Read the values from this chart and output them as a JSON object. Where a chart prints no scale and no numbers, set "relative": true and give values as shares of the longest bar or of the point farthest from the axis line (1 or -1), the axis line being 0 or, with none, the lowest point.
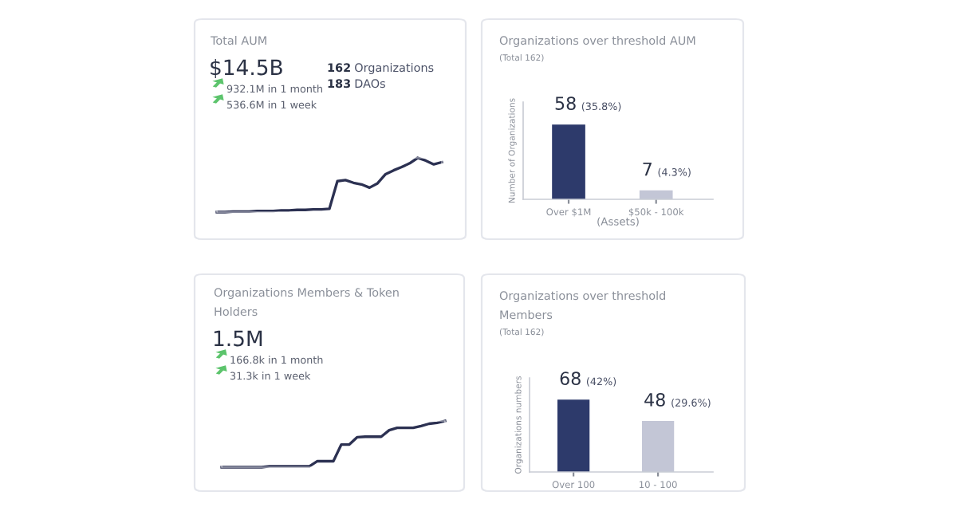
{
  "chart_data": [
    {
      "type": "line",
      "title": "Total AUM",
      "relative": true,
      "tick_labels": false,
      "grid": false,
      "legend": false,
      "annotations": [
        "$14.5B",
        "162 Organizations",
        "183 DAOs",
        "932.1M in 1 month",
        "536.6M in 1 week"
      ],
      "categories": [
        null,
        null,
        null,
        null,
        null,
        null,
        null,
        null,
        null,
        null,
        null,
        null,
        null,
        null,
        null,
        null,
        null,
        null,
        null,
        null,
        null,
        null,
        null,
        null,
        null,
        null,
        null,
        null,
        null
      ],
      "series": [
        {
          "color": "#2c3152",
          "values": [
            0,
            0,
            0.01,
            0.01,
            0.01,
            0.02,
            0.02,
            0.02,
            0.03,
            0.03,
            0.04,
            0.04,
            0.05,
            0.05,
            0.06,
            0.57,
            0.59,
            0.54,
            0.51,
            0.45,
            0.53,
            0.7,
            0.77,
            0.83,
            0.9,
            1,
            0.95,
            0.88,
            0.92
          ]
        }
      ]
    },
    {
      "type": "bar",
      "title": "Organizations over threshold AUM",
      "subtitle": "(Total 162)",
      "ylabel": "Number of Organizations",
      "xlabel": "(Assets)",
      "tick_labels": "x",
      "grid": false,
      "legend": false,
      "categories": [
        "Over $1M",
        "$50k - 100k"
      ],
      "values": [
        58,
        7
      ],
      "colors": [
        "#2d3a6b",
        "#c3c6d6"
      ],
      "value_labels": [
        "58 (35.8%)",
        "7 (4.3%)"
      ]
    },
    {
      "type": "line",
      "title": "Organizations Members & Token Holders",
      "relative": true,
      "tick_labels": false,
      "grid": false,
      "legend": false,
      "annotations": [
        "1.5M",
        "166.8k in 1 month",
        "31.3k in 1 week"
      ],
      "categories": [
        null,
        null,
        null,
        null,
        null,
        null,
        null,
        null,
        null,
        null,
        null,
        null,
        null,
        null,
        null,
        null,
        null,
        null,
        null,
        null,
        null,
        null,
        null,
        null,
        null,
        null,
        null,
        null,
        null
      ],
      "series": [
        {
          "color": "#2c3152",
          "values": [
            0,
            0,
            0,
            0,
            0,
            0,
            0.02,
            0.02,
            0.02,
            0.02,
            0.02,
            0.02,
            0.13,
            0.13,
            0.13,
            0.49,
            0.49,
            0.65,
            0.66,
            0.66,
            0.66,
            0.8,
            0.85,
            0.85,
            0.85,
            0.89,
            0.94,
            0.96,
            1.0
          ]
        }
      ]
    },
    {
      "type": "bar",
      "title": "Organizations over threshold Members",
      "subtitle": "(Total 162)",
      "ylabel": "Organizations numbers",
      "tick_labels": "x",
      "grid": false,
      "legend": false,
      "categories": [
        "Over 100",
        "10 - 100"
      ],
      "values": [
        68,
        48
      ],
      "colors": [
        "#2d3a6b",
        "#c3c6d6"
      ],
      "value_labels": [
        "68 (42%)",
        "48 (29.6%)"
      ]
    }
  ]
}
